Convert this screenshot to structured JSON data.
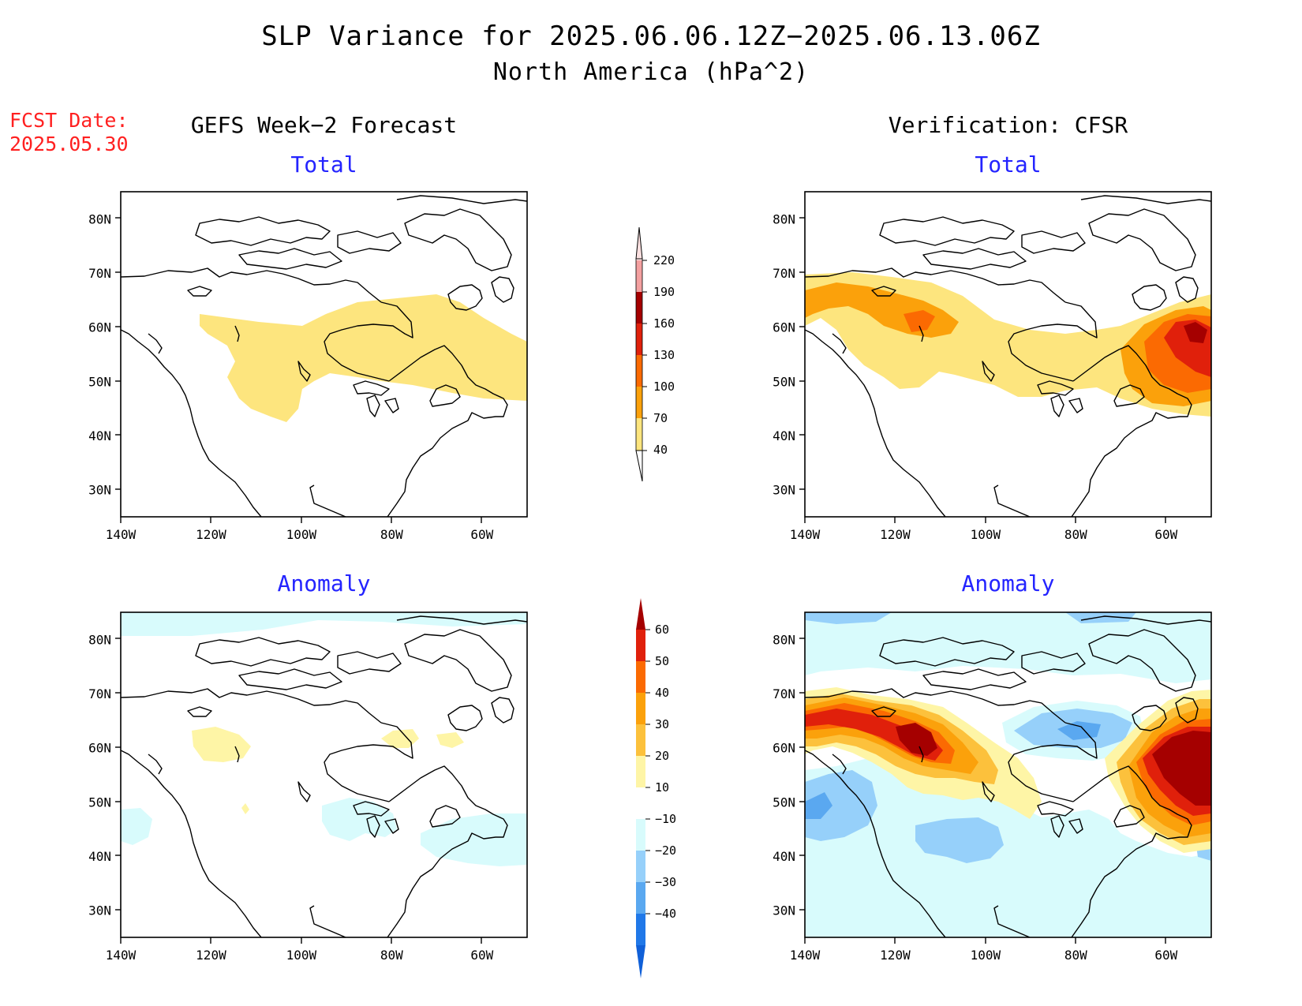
{
  "title": "SLP Variance for 2025.06.06.12Z−2025.06.13.06Z",
  "subtitle": "North America (hPa^2)",
  "fcst_date_label": "FCST Date:",
  "fcst_date_value": "2025.05.30",
  "columns": {
    "left": "GEFS Week−2 Forecast",
    "right": "Verification: CFSR"
  },
  "panel_titles": {
    "total": "Total",
    "anomaly": "Anomaly"
  },
  "axes": {
    "lat_labels": [
      "80N",
      "70N",
      "60N",
      "50N",
      "40N",
      "30N"
    ],
    "lon_labels": [
      "140W",
      "120W",
      "100W",
      "80W",
      "60W"
    ],
    "lat_range": [
      25,
      85
    ],
    "lon_range": [
      -140,
      -50
    ]
  },
  "colorbars": {
    "total": {
      "levels": [
        "40",
        "70",
        "100",
        "130",
        "160",
        "190",
        "220"
      ],
      "colors": [
        "#fde57e",
        "#fba10b",
        "#fb6a02",
        "#e0200b",
        "#a50000",
        "#f4a0a0",
        "#fbe0e0"
      ]
    },
    "anomaly": {
      "levels": [
        "60",
        "50",
        "40",
        "30",
        "20",
        "10",
        "−10",
        "−20",
        "−30",
        "−40"
      ],
      "colors": [
        "#a50000",
        "#e0200b",
        "#fb6a02",
        "#fba10b",
        "#fcc13c",
        "#fef5a6",
        "#ffffff",
        "#d8fbfc",
        "#96d0fa",
        "#5aa8f0",
        "#2078e8",
        "#1060d8"
      ]
    }
  },
  "icons": {
    "map_outline": "coastline-map"
  }
}
